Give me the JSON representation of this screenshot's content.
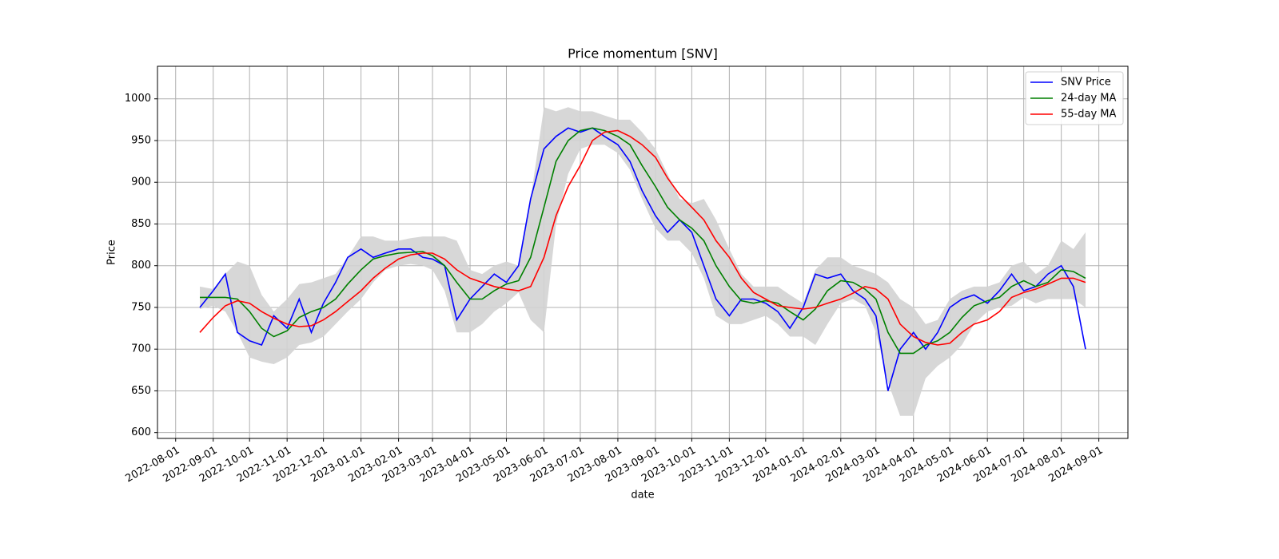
{
  "chart_data": {
    "type": "line",
    "title": "Price momentum [SNV]",
    "x_label": "date",
    "y_label": "Price",
    "x": [
      "2022-08-21",
      "2022-09-01",
      "2022-09-11",
      "2022-09-21",
      "2022-10-01",
      "2022-10-11",
      "2022-10-21",
      "2022-11-01",
      "2022-11-11",
      "2022-11-21",
      "2022-12-01",
      "2022-12-11",
      "2022-12-21",
      "2023-01-01",
      "2023-01-11",
      "2023-01-21",
      "2023-02-01",
      "2023-02-11",
      "2023-02-21",
      "2023-03-01",
      "2023-03-11",
      "2023-03-21",
      "2023-04-01",
      "2023-04-11",
      "2023-04-21",
      "2023-05-01",
      "2023-05-11",
      "2023-05-21",
      "2023-06-01",
      "2023-06-11",
      "2023-06-21",
      "2023-07-01",
      "2023-07-11",
      "2023-07-21",
      "2023-08-01",
      "2023-08-11",
      "2023-08-21",
      "2023-09-01",
      "2023-09-11",
      "2023-09-21",
      "2023-10-01",
      "2023-10-11",
      "2023-10-21",
      "2023-11-01",
      "2023-11-11",
      "2023-11-21",
      "2023-12-01",
      "2023-12-11",
      "2023-12-21",
      "2024-01-01",
      "2024-01-11",
      "2024-01-21",
      "2024-02-01",
      "2024-02-11",
      "2024-02-21",
      "2024-03-01",
      "2024-03-11",
      "2024-03-21",
      "2024-04-01",
      "2024-04-11",
      "2024-04-21",
      "2024-05-01",
      "2024-05-11",
      "2024-05-21",
      "2024-06-01",
      "2024-06-11",
      "2024-06-21",
      "2024-07-01",
      "2024-07-11",
      "2024-07-21",
      "2024-08-01",
      "2024-08-11",
      "2024-08-21"
    ],
    "series": [
      {
        "name": "SNV Price",
        "color": "#0000ff",
        "values": [
          750,
          770,
          790,
          720,
          710,
          705,
          740,
          725,
          760,
          720,
          755,
          780,
          810,
          820,
          810,
          815,
          820,
          820,
          810,
          808,
          800,
          735,
          760,
          775,
          790,
          780,
          800,
          880,
          940,
          955,
          965,
          960,
          965,
          955,
          945,
          925,
          890,
          860,
          840,
          855,
          840,
          800,
          760,
          740,
          760,
          760,
          755,
          745,
          725,
          750,
          790,
          785,
          790,
          770,
          760,
          740,
          650,
          700,
          720,
          700,
          720,
          750,
          760,
          765,
          755,
          770,
          790,
          770,
          775,
          790,
          800,
          775,
          700
        ]
      },
      {
        "name": "24-day MA",
        "color": "#008000",
        "values": [
          762,
          762,
          762,
          760,
          745,
          725,
          715,
          722,
          738,
          745,
          750,
          760,
          778,
          795,
          808,
          812,
          815,
          816,
          817,
          812,
          800,
          780,
          760,
          760,
          770,
          778,
          782,
          810,
          870,
          925,
          950,
          962,
          965,
          962,
          955,
          945,
          920,
          895,
          870,
          855,
          845,
          830,
          800,
          775,
          758,
          755,
          758,
          755,
          745,
          735,
          748,
          770,
          782,
          780,
          772,
          760,
          720,
          695,
          695,
          705,
          710,
          720,
          738,
          752,
          758,
          762,
          775,
          782,
          775,
          780,
          795,
          793,
          785
        ]
      },
      {
        "name": "55-day MA",
        "color": "#ff0000",
        "values": [
          720,
          738,
          752,
          758,
          755,
          745,
          737,
          730,
          727,
          728,
          735,
          745,
          757,
          770,
          785,
          797,
          808,
          813,
          815,
          815,
          808,
          795,
          785,
          780,
          775,
          772,
          770,
          775,
          810,
          860,
          895,
          920,
          950,
          960,
          962,
          955,
          945,
          930,
          905,
          885,
          870,
          855,
          830,
          810,
          785,
          768,
          760,
          752,
          750,
          748,
          750,
          755,
          760,
          767,
          775,
          772,
          760,
          730,
          715,
          708,
          705,
          707,
          720,
          730,
          735,
          745,
          762,
          768,
          772,
          778,
          785,
          785,
          780
        ]
      }
    ],
    "band": {
      "color": "#d3d3d3",
      "upper": [
        775,
        772,
        790,
        805,
        800,
        765,
        745,
        760,
        778,
        780,
        785,
        790,
        810,
        835,
        835,
        830,
        830,
        833,
        835,
        835,
        835,
        830,
        795,
        790,
        800,
        805,
        800,
        880,
        990,
        985,
        990,
        985,
        985,
        980,
        975,
        975,
        960,
        940,
        910,
        880,
        875,
        880,
        855,
        820,
        790,
        775,
        775,
        775,
        765,
        755,
        795,
        810,
        810,
        800,
        795,
        790,
        780,
        760,
        750,
        730,
        735,
        760,
        770,
        775,
        775,
        780,
        800,
        805,
        790,
        800,
        830,
        820,
        840
      ],
      "lower": [
        748,
        752,
        745,
        720,
        690,
        685,
        682,
        690,
        705,
        708,
        715,
        730,
        745,
        760,
        780,
        795,
        800,
        802,
        800,
        795,
        770,
        720,
        720,
        730,
        745,
        755,
        768,
        735,
        720,
        850,
        910,
        940,
        945,
        945,
        935,
        915,
        880,
        845,
        830,
        830,
        815,
        785,
        740,
        730,
        730,
        735,
        740,
        730,
        715,
        715,
        705,
        730,
        755,
        760,
        752,
        720,
        660,
        620,
        620,
        665,
        680,
        690,
        705,
        730,
        745,
        750,
        752,
        762,
        755,
        760,
        760,
        760,
        750
      ]
    },
    "xlim": [
      "2022-07-17",
      "2024-09-25"
    ],
    "xticks": [
      "2022-08-01",
      "2022-09-01",
      "2022-10-01",
      "2022-11-01",
      "2022-12-01",
      "2023-01-01",
      "2023-02-01",
      "2023-03-01",
      "2023-04-01",
      "2023-05-01",
      "2023-06-01",
      "2023-07-01",
      "2023-08-01",
      "2023-09-01",
      "2023-10-01",
      "2023-11-01",
      "2023-12-01",
      "2024-01-01",
      "2024-02-01",
      "2024-03-01",
      "2024-04-01",
      "2024-05-01",
      "2024-06-01",
      "2024-07-01",
      "2024-08-01",
      "2024-09-01"
    ],
    "ylim": [
      593,
      1039
    ],
    "yticks": [
      600,
      650,
      700,
      750,
      800,
      850,
      900,
      950,
      1000
    ],
    "grid": true,
    "legend": "upper right"
  }
}
